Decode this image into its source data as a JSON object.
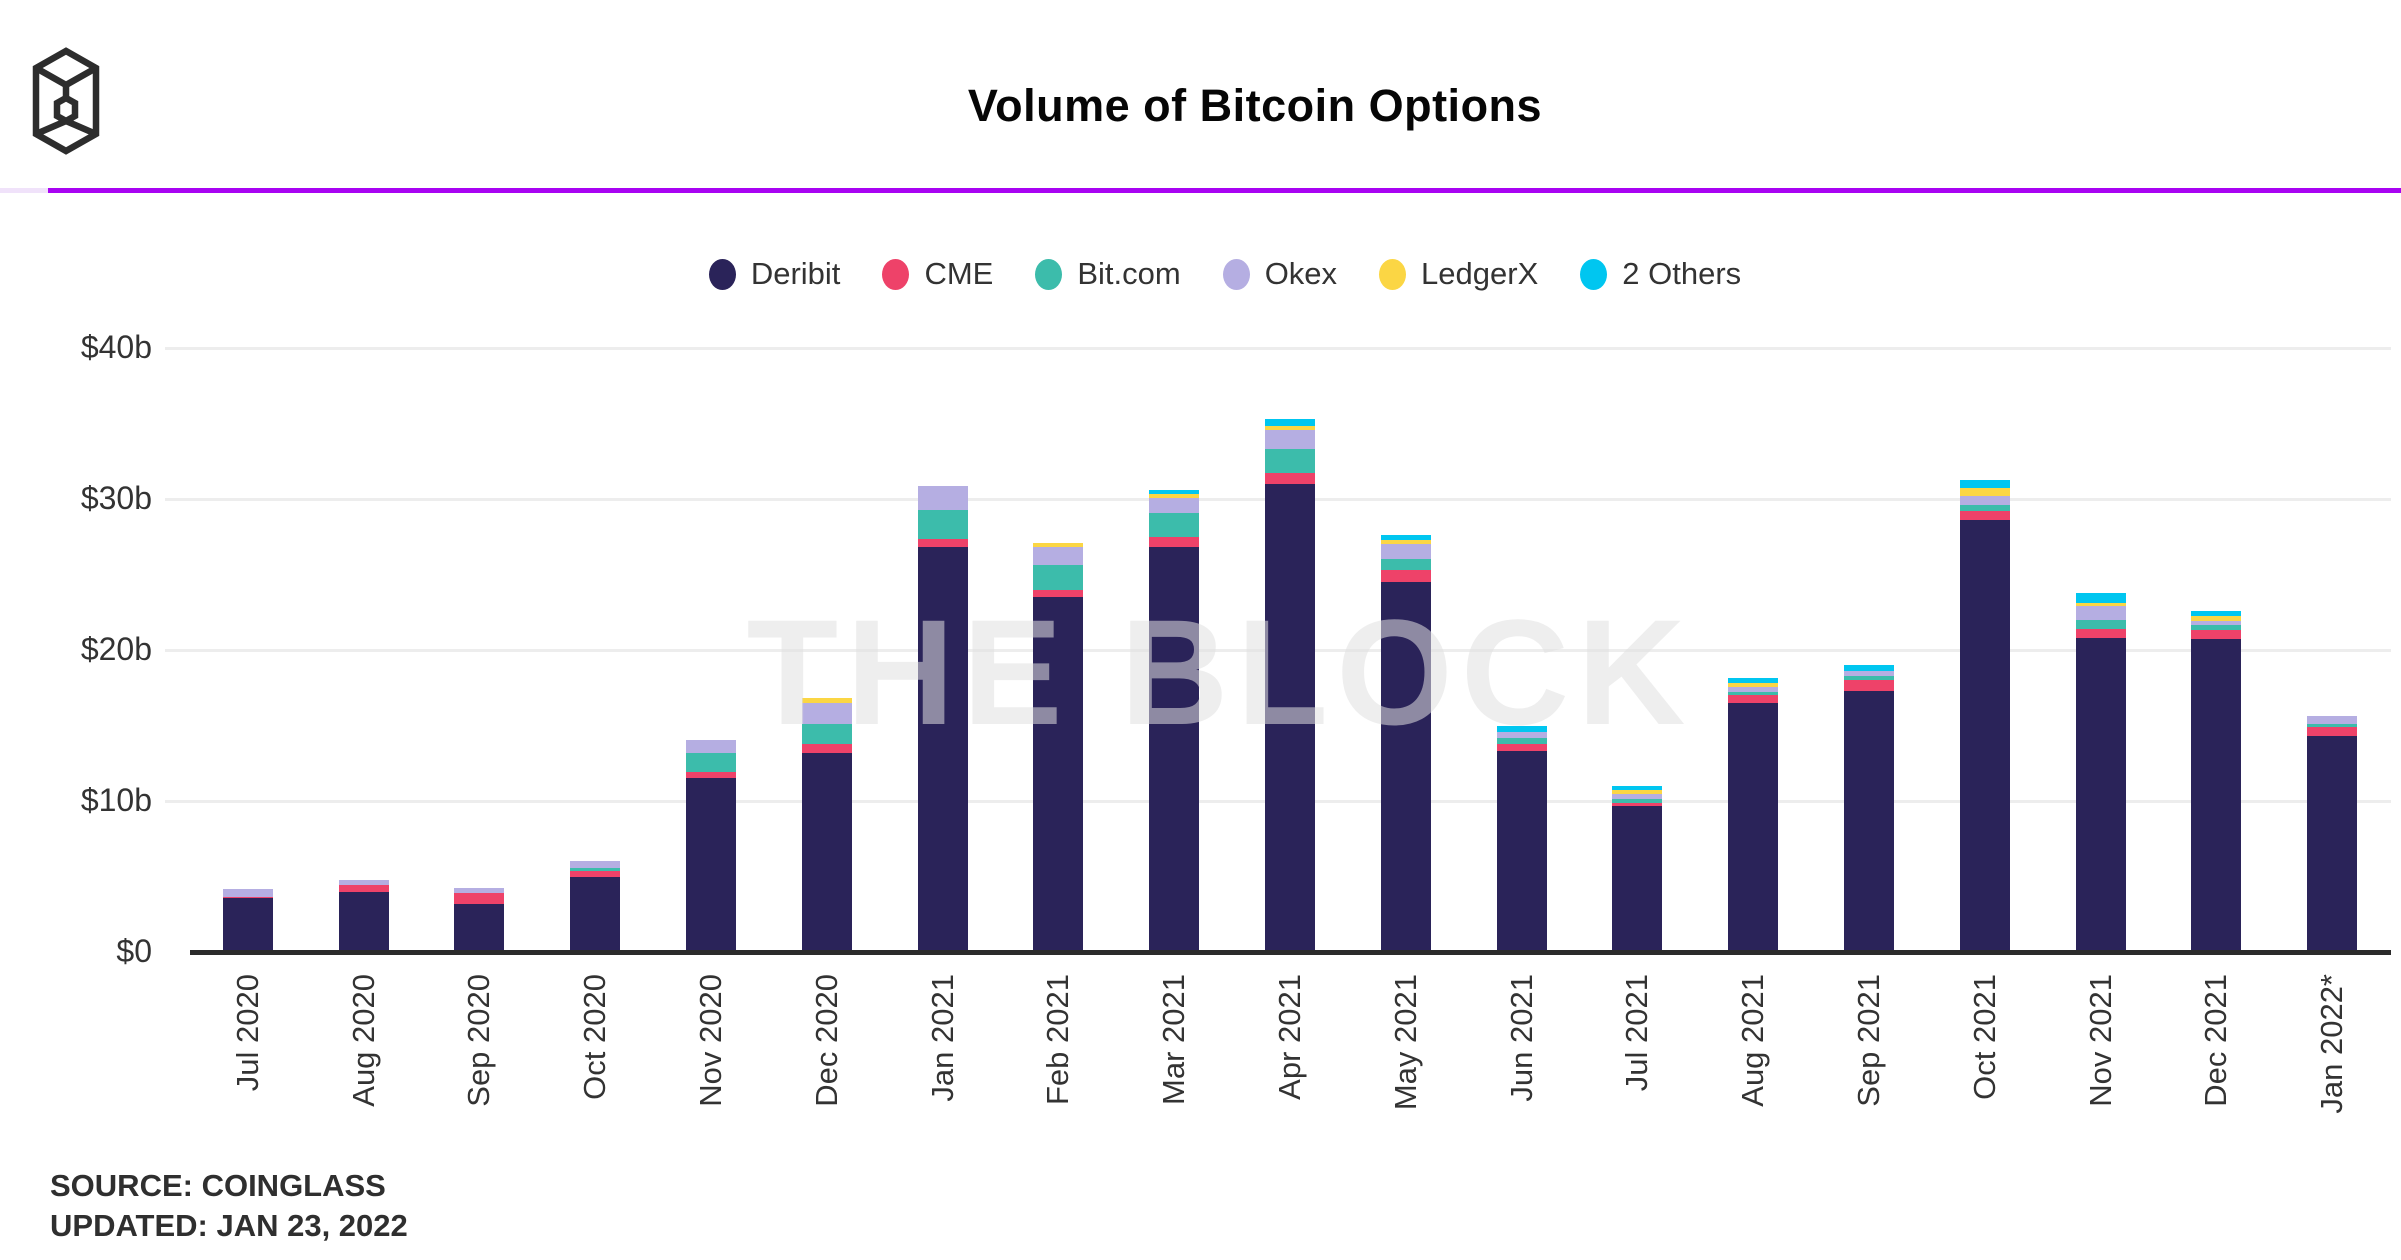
{
  "header": {
    "title": "Volume of Bitcoin Options",
    "logo": "the-block-cube-logo"
  },
  "watermark": "THE BLOCK",
  "footer": {
    "source": "SOURCE: COINGLASS",
    "updated": "UPDATED: JAN 23, 2022"
  },
  "colors": {
    "divider": "#a803f2",
    "gridline": "#ededed",
    "axis": "#2b2b2b",
    "text": "#333333"
  },
  "chart_data": {
    "type": "bar",
    "stacked": true,
    "title": "Volume of Bitcoin Options",
    "unit": "USD billions",
    "grid": true,
    "legend_position": "top",
    "ylim": [
      0,
      40
    ],
    "categories": [
      "Jul 2020",
      "Aug 2020",
      "Sep 2020",
      "Oct 2020",
      "Nov 2020",
      "Dec 2020",
      "Jan 2021",
      "Feb 2021",
      "Mar 2021",
      "Apr 2021",
      "May 2021",
      "Jun 2021",
      "Jul 2021",
      "Aug 2021",
      "Sep 2021",
      "Oct 2021",
      "Nov 2021",
      "Dec 2021",
      "Jan 2022*"
    ],
    "yticks": [
      {
        "label": "$40b",
        "value": 40
      },
      {
        "label": "$30b",
        "value": 30
      },
      {
        "label": "$20b",
        "value": 20
      },
      {
        "label": "$10b",
        "value": 10
      },
      {
        "label": "$0",
        "value": 0
      }
    ],
    "series": [
      {
        "name": "Deribit",
        "color": "#2a2359",
        "values": [
          3.6,
          4.0,
          3.2,
          4.95,
          11.5,
          13.2,
          26.8,
          23.5,
          26.8,
          31.0,
          24.5,
          13.3,
          9.7,
          16.5,
          17.3,
          28.6,
          20.8,
          20.7,
          14.3
        ]
      },
      {
        "name": "CME",
        "color": "#ee4269",
        "values": [
          0.05,
          0.45,
          0.7,
          0.4,
          0.45,
          0.55,
          0.55,
          0.5,
          0.7,
          0.75,
          0.8,
          0.45,
          0.2,
          0.5,
          0.7,
          0.6,
          0.6,
          0.6,
          0.6
        ]
      },
      {
        "name": "Bit.com",
        "color": "#3cbcab",
        "values": [
          0,
          0,
          0,
          0.2,
          1.2,
          1.35,
          1.9,
          1.6,
          1.55,
          1.55,
          0.75,
          0.4,
          0.22,
          0.22,
          0.3,
          0.4,
          0.6,
          0.33,
          0.22
        ]
      },
      {
        "name": "Okex",
        "color": "#b5aee2",
        "values": [
          0.55,
          0.3,
          0.35,
          0.45,
          0.9,
          1.4,
          1.6,
          1.2,
          1.0,
          1.25,
          1.0,
          0.4,
          0.35,
          0.3,
          0.3,
          0.6,
          0.9,
          0.3,
          0.5
        ]
      },
      {
        "name": "LedgerX",
        "color": "#fbd644",
        "values": [
          0,
          0,
          0,
          0,
          0,
          0.3,
          0,
          0.27,
          0.27,
          0.27,
          0.25,
          0,
          0.25,
          0.3,
          0,
          0.5,
          0.22,
          0.33,
          0
        ]
      },
      {
        "name": "2 Others",
        "color": "#00c6f0",
        "values": [
          0,
          0,
          0,
          0,
          0,
          0,
          0,
          0,
          0.3,
          0.5,
          0.3,
          0.45,
          0.3,
          0.3,
          0.4,
          0.55,
          0.65,
          0.3,
          0
        ]
      }
    ]
  }
}
